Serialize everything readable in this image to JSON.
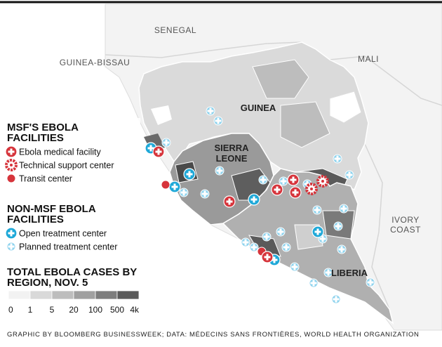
{
  "map_labels": {
    "senegal": "SENEGAL",
    "guinea_bissau": "GUINEA-BISSAU",
    "mali": "MALI",
    "guinea": "GUINEA",
    "sierra_leone": [
      "SIERRA",
      "LEONE"
    ],
    "ivory_coast": [
      "IVORY",
      "COAST"
    ],
    "liberia": "LIBERIA"
  },
  "legend": {
    "msf": {
      "title": [
        "MSF'S EBOLA",
        "FACILITIES"
      ],
      "items": [
        "Ebola medical facility",
        "Technical support center",
        "Transit center"
      ]
    },
    "non_msf": {
      "title": [
        "NON-MSF EBOLA",
        "FACILITIES"
      ],
      "items": [
        "Open treatment center",
        "Planned treatment center"
      ]
    },
    "cases": {
      "title": [
        "TOTAL EBOLA CASES BY",
        "REGION, NOV. 5"
      ],
      "scale": [
        "0",
        "1",
        "5",
        "20",
        "100",
        "500",
        "4k"
      ]
    }
  },
  "footer": "GRAPHIC BY BLOOMBERG BUSINESSWEEK; DATA: MÉDECINS SANS FRONTIÈRES, WORLD HEALTH ORGANIZATION"
}
